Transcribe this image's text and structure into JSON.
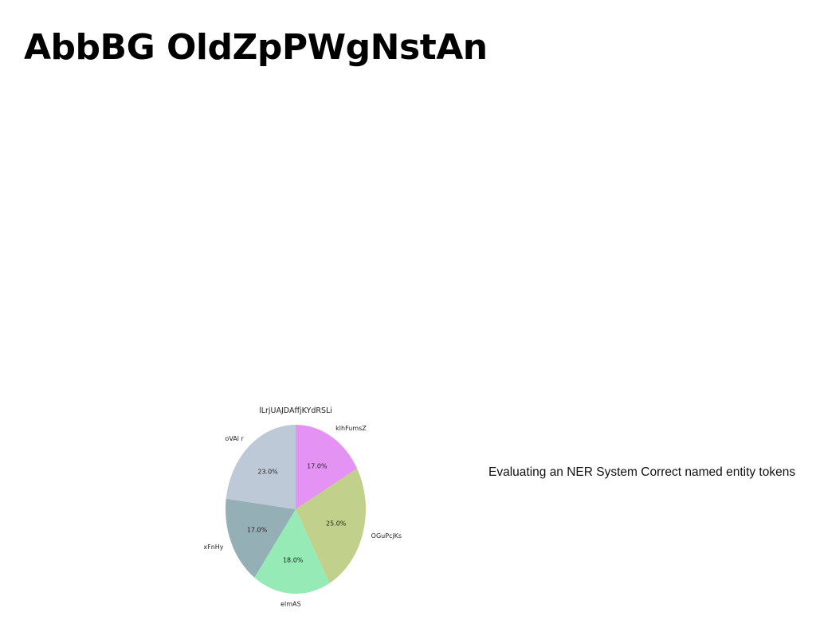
{
  "page": {
    "title": "AbbBG OldZpPWgNstAn",
    "side_text": "Evaluating an NER System Correct named entity tokens"
  },
  "chart_data": {
    "type": "pie",
    "title": "lLrjUAJDAffjKYdRSLi",
    "slices": [
      {
        "label": "klhFumsZ",
        "value": 17.0,
        "pct_label": "17.0%",
        "color": "#e493f5"
      },
      {
        "label": "OGuPcjKs",
        "value": 25.0,
        "pct_label": "25.0%",
        "color": "#c1d08a"
      },
      {
        "label": "elmAS",
        "value": 18.0,
        "pct_label": "18.0%",
        "color": "#95eab6"
      },
      {
        "label": "xFnHy",
        "value": 17.0,
        "pct_label": "17.0%",
        "color": "#95afb6"
      },
      {
        "label": "oVAl r",
        "value": 23.0,
        "pct_label": "23.0%",
        "color": "#bec9d7"
      }
    ],
    "start": "top",
    "direction": "clockwise"
  }
}
